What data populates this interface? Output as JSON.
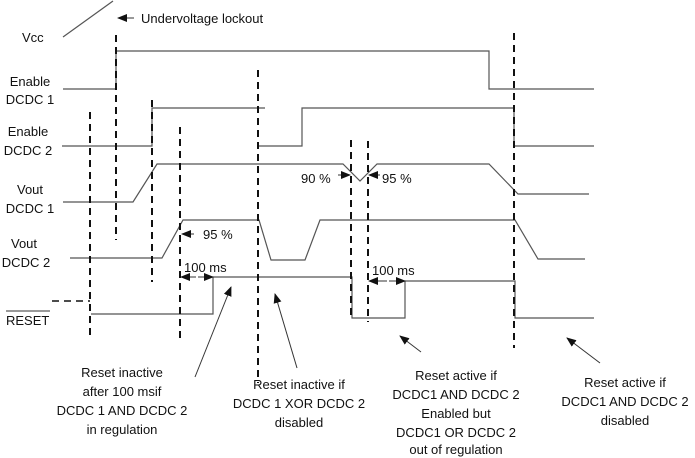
{
  "signals": {
    "vcc": "Vcc",
    "enable_dcdc1": [
      "Enable",
      "DCDC 1"
    ],
    "enable_dcdc2": [
      "Enable",
      "DCDC 2"
    ],
    "vout_dcdc1": [
      "Vout",
      "DCDC 1"
    ],
    "vout_dcdc2": [
      "Vout",
      "DCDC 2"
    ],
    "reset": "RESET"
  },
  "annotations": {
    "undervoltage": "Undervoltage lockout",
    "pct_90": "90 %",
    "pct_95_dcdc1": "95 %",
    "pct_95_dcdc2": "95 %",
    "delay_1": "100 ms",
    "delay_2": "100 ms"
  },
  "notes": [
    {
      "lines": [
        "Reset inactive",
        "after  100 msif",
        "DCDC 1 AND DCDC 2",
        "in regulation"
      ]
    },
    {
      "lines": [
        "Reset inactive if",
        "DCDC 1 XOR DCDC 2",
        "disabled"
      ]
    },
    {
      "lines": [
        "Reset active if",
        "DCDC1 AND DCDC 2",
        "Enabled but",
        "DCDC1 OR DCDC 2",
        "out of regulation"
      ]
    },
    {
      "lines": [
        "Reset active if",
        "DCDC1 AND DCDC 2",
        "disabled"
      ]
    }
  ]
}
